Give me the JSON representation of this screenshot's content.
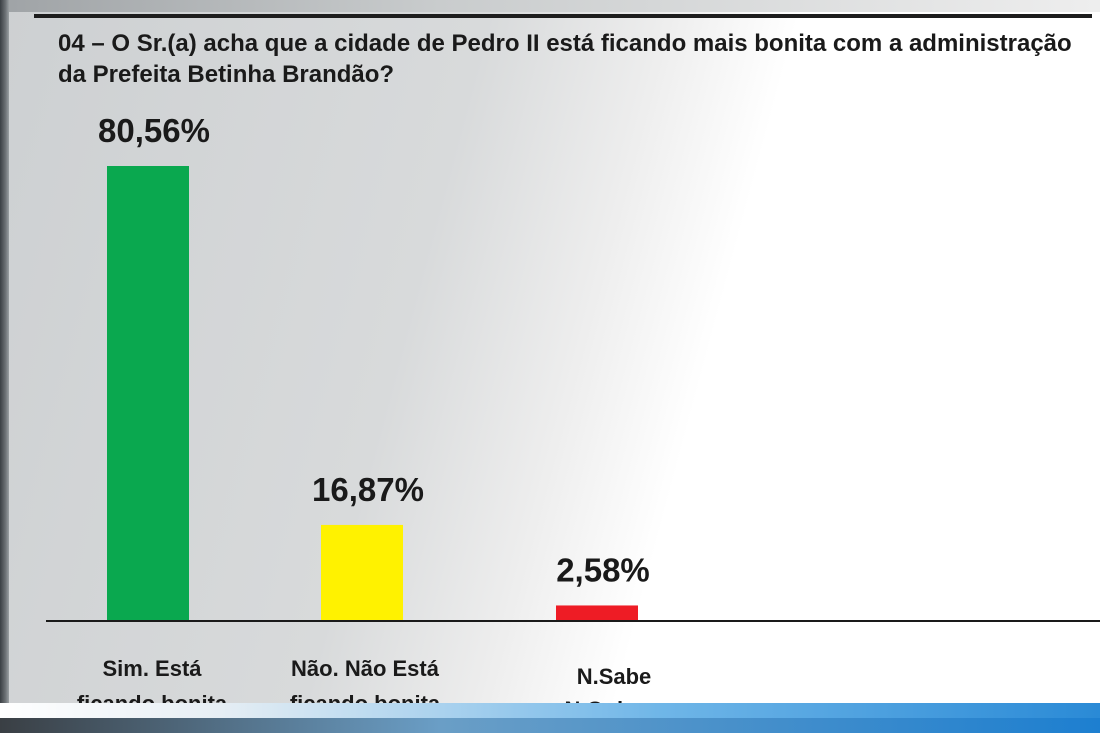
{
  "question": "04 – O Sr.(a) acha que a cidade de Pedro II está ficando mais bonita com a administração da Prefeita Betinha Brandão?",
  "chart_data": {
    "type": "bar",
    "title": "04 – O Sr.(a) acha que a cidade de Pedro II está ficando mais bonita com a administração da Prefeita Betinha Brandão?",
    "categories": [
      [
        "Sim. Está",
        "ficando bonita"
      ],
      [
        "Não. Não Está",
        "ficando bonita"
      ],
      [
        "N.Sabe",
        "N.Opinou"
      ]
    ],
    "values": [
      80.56,
      16.87,
      2.58
    ],
    "value_labels": [
      "80,56%",
      "16,87%",
      "2,58%"
    ],
    "colors": [
      "#0aa84f",
      "#fff200",
      "#ee1c25"
    ],
    "ylim": [
      0,
      100
    ],
    "grid": false,
    "legend": "none",
    "xlabel": "",
    "ylabel": ""
  }
}
